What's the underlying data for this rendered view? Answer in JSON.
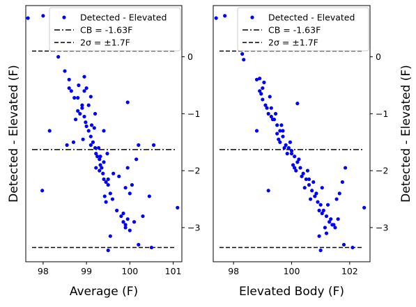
{
  "chart_data": [
    {
      "type": "scatter",
      "xlabel": "Average (F)",
      "ylabel": "Detected - Elevated (F)",
      "xlim": [
        97.6,
        101.2
      ],
      "ylim": [
        -3.6,
        0.9
      ],
      "xticks": [
        98,
        99,
        100,
        101
      ],
      "xtick_labels": [
        "98",
        "99",
        "100",
        "101"
      ],
      "yticks": [
        0,
        -1,
        -2,
        -3
      ],
      "ytick_labels": [
        "0",
        "−1",
        "−2",
        "−3"
      ],
      "y_axis_side": "right",
      "legend": [
        "Detected - Elevated",
        "CB = -1.63F",
        "2σ = ±1.7F"
      ],
      "legend_position": "top-right",
      "grid": false,
      "lines": [
        {
          "name": "CB = -1.63F",
          "y": -1.63,
          "style": "dashdot",
          "color": "#000000"
        },
        {
          "name": "2σ = ±1.7F",
          "y": 0.1,
          "style": "dashed",
          "color": "#000000"
        },
        {
          "name": "2σ = ±1.7F",
          "y": -3.35,
          "style": "dashed",
          "color": "#000000"
        }
      ],
      "series": [
        {
          "name": "Detected - Elevated",
          "color": "#0000ff",
          "points": [
            [
              97.65,
              0.68
            ],
            [
              98.0,
              0.72
            ],
            [
              98.35,
              0.0
            ],
            [
              98.5,
              -0.25
            ],
            [
              98.6,
              -0.4
            ],
            [
              98.6,
              -0.55
            ],
            [
              98.65,
              -0.6
            ],
            [
              98.72,
              -0.72
            ],
            [
              98.8,
              -0.72
            ],
            [
              98.8,
              -0.95
            ],
            [
              98.9,
              -0.9
            ],
            [
              98.95,
              -1.05
            ],
            [
              98.98,
              -1.15
            ],
            [
              99.0,
              -1.22
            ],
            [
              99.05,
              -1.3
            ],
            [
              99.1,
              -1.4
            ],
            [
              99.1,
              -1.55
            ],
            [
              99.15,
              -1.5
            ],
            [
              99.2,
              -1.6
            ],
            [
              99.22,
              -1.7
            ],
            [
              99.25,
              -1.75
            ],
            [
              99.3,
              -1.8
            ],
            [
              99.32,
              -1.9
            ],
            [
              99.35,
              -1.95
            ],
            [
              99.38,
              -2.05
            ],
            [
              99.4,
              -2.15
            ],
            [
              99.45,
              -2.2
            ],
            [
              99.5,
              -2.25
            ],
            [
              99.55,
              -2.4
            ],
            [
              99.6,
              -2.5
            ],
            [
              99.7,
              -2.7
            ],
            [
              99.8,
              -2.8
            ],
            [
              99.85,
              -2.9
            ],
            [
              99.9,
              -3.0
            ],
            [
              99.95,
              -2.85
            ],
            [
              100.0,
              -3.05
            ],
            [
              100.2,
              -3.3
            ],
            [
              100.3,
              -2.8
            ],
            [
              100.45,
              -2.45
            ],
            [
              100.5,
              -3.35
            ],
            [
              101.1,
              -2.65
            ],
            [
              98.15,
              -1.3
            ],
            [
              97.98,
              -2.35
            ],
            [
              98.55,
              -1.55
            ],
            [
              98.7,
              -1.5
            ],
            [
              98.75,
              -1.1
            ],
            [
              98.85,
              -1.0
            ],
            [
              98.9,
              -0.85
            ],
            [
              98.95,
              -0.6
            ],
            [
              99.0,
              -0.55
            ],
            [
              99.05,
              -0.85
            ],
            [
              99.12,
              -1.2
            ],
            [
              99.18,
              -1.25
            ],
            [
              99.28,
              -1.6
            ],
            [
              99.32,
              -1.75
            ],
            [
              99.4,
              -1.85
            ],
            [
              99.42,
              -2.45
            ],
            [
              99.45,
              -2.55
            ],
            [
              99.5,
              -3.4
            ],
            [
              99.55,
              -3.15
            ],
            [
              99.62,
              -2.05
            ],
            [
              99.75,
              -2.1
            ],
            [
              99.9,
              -2.3
            ],
            [
              99.95,
              -1.95
            ],
            [
              100.0,
              -2.4
            ],
            [
              100.05,
              -2.25
            ],
            [
              100.1,
              -2.9
            ],
            [
              100.15,
              -1.8
            ],
            [
              100.2,
              -1.55
            ],
            [
              100.55,
              -1.55
            ],
            [
              99.95,
              -0.8
            ],
            [
              99.4,
              -1.3
            ],
            [
              99.2,
              -1.0
            ],
            [
              99.1,
              -0.7
            ],
            [
              98.95,
              -0.35
            ],
            [
              98.82,
              -0.5
            ],
            [
              98.92,
              -1.45
            ],
            [
              99.22,
              -1.95
            ],
            [
              99.3,
              -2.0
            ],
            [
              99.48,
              -1.7
            ],
            [
              99.5,
              -2.15
            ],
            [
              99.85,
              -2.75
            ],
            [
              99.9,
              -2.95
            ]
          ]
        }
      ]
    },
    {
      "type": "scatter",
      "xlabel": "Elevated Body (F)",
      "ylabel": "Detected - Elevated (F)",
      "xlim": [
        97.3,
        102.7
      ],
      "ylim": [
        -3.6,
        0.9
      ],
      "xticks": [
        98,
        100,
        102
      ],
      "xtick_labels": [
        "98",
        "100",
        "102"
      ],
      "yticks": [
        0,
        -1,
        -2,
        -3
      ],
      "ytick_labels": [
        "0",
        "−1",
        "−2",
        "−3"
      ],
      "y_axis_side": "right",
      "legend": [
        "Detected - Elevated",
        "CB = -1.63F",
        "2σ = ±1.7F"
      ],
      "legend_position": "top-right",
      "grid": false,
      "lines": [
        {
          "name": "CB = -1.63F",
          "y": -1.63,
          "style": "dashdot",
          "color": "#000000"
        },
        {
          "name": "2σ = ±1.7F",
          "y": 0.1,
          "style": "dashed",
          "color": "#000000"
        },
        {
          "name": "2σ = ±1.7F",
          "y": -3.35,
          "style": "dashed",
          "color": "#000000"
        }
      ],
      "series": [
        {
          "name": "Detected - Elevated",
          "color": "#0000ff",
          "points": [
            [
              97.4,
              0.68
            ],
            [
              97.7,
              0.72
            ],
            [
              98.3,
              0.05
            ],
            [
              98.35,
              -0.05
            ],
            [
              98.8,
              -0.4
            ],
            [
              98.9,
              -0.38
            ],
            [
              98.9,
              -0.6
            ],
            [
              99.0,
              -0.55
            ],
            [
              99.0,
              -0.75
            ],
            [
              99.1,
              -0.85
            ],
            [
              99.15,
              -0.9
            ],
            [
              99.2,
              -1.0
            ],
            [
              99.3,
              -1.05
            ],
            [
              99.35,
              -1.1
            ],
            [
              99.5,
              -1.2
            ],
            [
              99.6,
              -1.3
            ],
            [
              99.7,
              -1.4
            ],
            [
              99.8,
              -1.55
            ],
            [
              99.9,
              -1.6
            ],
            [
              100.0,
              -1.7
            ],
            [
              100.1,
              -1.75
            ],
            [
              100.2,
              -1.85
            ],
            [
              100.3,
              -1.95
            ],
            [
              100.4,
              -2.05
            ],
            [
              100.5,
              -2.15
            ],
            [
              100.6,
              -2.25
            ],
            [
              100.7,
              -2.35
            ],
            [
              100.8,
              -2.45
            ],
            [
              100.9,
              -2.55
            ],
            [
              101.0,
              -2.6
            ],
            [
              101.1,
              -2.7
            ],
            [
              101.2,
              -2.8
            ],
            [
              101.3,
              -2.9
            ],
            [
              101.4,
              -2.95
            ],
            [
              101.5,
              -3.0
            ],
            [
              101.6,
              -2.85
            ],
            [
              101.8,
              -3.3
            ],
            [
              102.1,
              -3.35
            ],
            [
              102.5,
              -2.65
            ],
            [
              101.2,
              -3.1
            ],
            [
              101.0,
              -3.4
            ],
            [
              100.95,
              -3.15
            ],
            [
              98.8,
              -1.3
            ],
            [
              99.2,
              -2.35
            ],
            [
              99.25,
              -0.7
            ],
            [
              99.3,
              -0.9
            ],
            [
              99.45,
              -1.0
            ],
            [
              99.5,
              -1.35
            ],
            [
              99.65,
              -1.2
            ],
            [
              99.75,
              -1.6
            ],
            [
              99.85,
              -1.7
            ],
            [
              99.95,
              -1.5
            ],
            [
              100.05,
              -1.9
            ],
            [
              100.15,
              -2.0
            ],
            [
              100.25,
              -1.8
            ],
            [
              100.35,
              -2.1
            ],
            [
              100.45,
              -2.3
            ],
            [
              100.55,
              -2.0
            ],
            [
              100.65,
              -2.5
            ],
            [
              100.75,
              -2.2
            ],
            [
              100.85,
              -2.4
            ],
            [
              100.95,
              -2.7
            ],
            [
              101.05,
              -2.3
            ],
            [
              101.15,
              -3.0
            ],
            [
              101.25,
              -2.6
            ],
            [
              101.35,
              -2.85
            ],
            [
              101.45,
              -2.95
            ],
            [
              101.55,
              -2.5
            ],
            [
              101.65,
              -2.4
            ],
            [
              101.75,
              -2.2
            ],
            [
              101.85,
              -1.95
            ],
            [
              100.2,
              -0.82
            ],
            [
              99.6,
              -1.5
            ],
            [
              99.7,
              -1.3
            ],
            [
              99.4,
              -1.1
            ],
            [
              99.05,
              -0.45
            ],
            [
              98.95,
              -0.65
            ],
            [
              99.55,
              -1.45
            ],
            [
              100.0,
              -1.65
            ],
            [
              100.1,
              -1.95
            ],
            [
              100.6,
              -2.15
            ],
            [
              101.05,
              -2.75
            ]
          ]
        }
      ]
    }
  ]
}
